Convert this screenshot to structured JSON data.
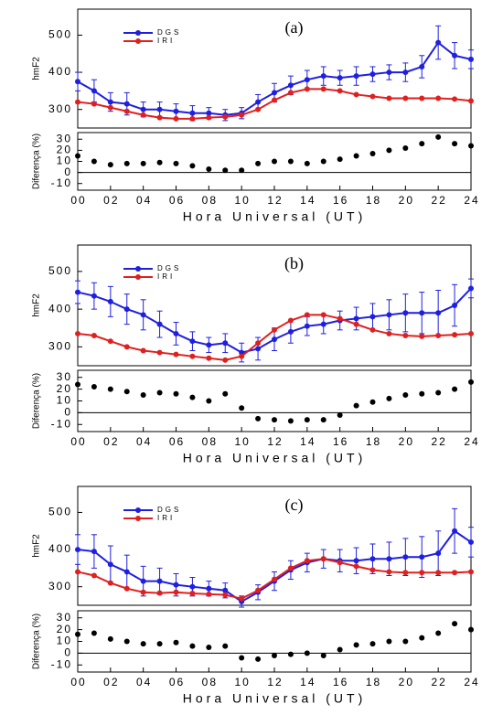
{
  "chart_data": [
    {
      "type": "line",
      "annotation": "(a)",
      "ylabel": "hmF2",
      "xlim": [
        0,
        24
      ],
      "ylim": [
        250,
        570
      ],
      "yticks": [
        300,
        400,
        500
      ],
      "x": [
        0,
        1,
        2,
        3,
        4,
        5,
        6,
        7,
        8,
        9,
        10,
        11,
        12,
        13,
        14,
        15,
        16,
        17,
        18,
        19,
        20,
        21,
        22,
        23,
        24
      ],
      "series": [
        {
          "name": "DGS",
          "color": "#1f1fe0",
          "values": [
            375,
            350,
            320,
            315,
            300,
            300,
            295,
            290,
            290,
            285,
            290,
            320,
            345,
            365,
            380,
            390,
            385,
            390,
            395,
            400,
            400,
            415,
            480,
            445,
            435
          ],
          "errors": [
            25,
            30,
            25,
            30,
            20,
            20,
            20,
            20,
            15,
            15,
            15,
            20,
            25,
            25,
            25,
            25,
            20,
            25,
            20,
            20,
            25,
            30,
            45,
            35,
            25
          ]
        },
        {
          "name": "IRI",
          "color": "#e0201f",
          "values": [
            320,
            315,
            305,
            295,
            285,
            278,
            275,
            275,
            278,
            280,
            285,
            300,
            325,
            345,
            355,
            355,
            350,
            340,
            335,
            330,
            330,
            330,
            330,
            328,
            323
          ]
        }
      ]
    },
    {
      "type": "scatter",
      "ylabel": "Diferença (%)",
      "xlabel": "Hora Universal (UT)",
      "xlim": [
        0,
        24
      ],
      "ylim": [
        -16,
        36
      ],
      "yticks": [
        -10,
        0,
        10,
        20,
        30
      ],
      "zero_line": true,
      "xticks": [
        {
          "value": 0,
          "label": "00"
        },
        {
          "value": 2,
          "label": "02"
        },
        {
          "value": 4,
          "label": "04"
        },
        {
          "value": 6,
          "label": "06"
        },
        {
          "value": 8,
          "label": "08"
        },
        10,
        12,
        14,
        16,
        18,
        20,
        22,
        24
      ],
      "x": [
        0,
        1,
        2,
        3,
        4,
        5,
        6,
        7,
        8,
        9,
        10,
        11,
        12,
        13,
        14,
        15,
        16,
        17,
        18,
        19,
        20,
        21,
        22,
        23,
        24
      ],
      "series": [
        {
          "color": "#000000",
          "values": [
            15,
            10,
            7,
            8,
            8,
            9,
            8,
            6,
            3,
            2,
            2,
            8,
            10,
            10,
            8,
            10,
            12,
            15,
            17,
            20,
            22,
            26,
            32,
            26,
            24
          ]
        }
      ]
    },
    {
      "type": "line",
      "annotation": "(b)",
      "ylabel": "hmF2",
      "xlim": [
        0,
        24
      ],
      "ylim": [
        250,
        570
      ],
      "yticks": [
        300,
        400,
        500
      ],
      "x": [
        0,
        1,
        2,
        3,
        4,
        5,
        6,
        7,
        8,
        9,
        10,
        11,
        12,
        13,
        14,
        15,
        16,
        17,
        18,
        19,
        20,
        21,
        22,
        23,
        24
      ],
      "series": [
        {
          "name": "DGS",
          "color": "#1f1fe0",
          "values": [
            445,
            435,
            420,
            400,
            385,
            360,
            335,
            315,
            305,
            310,
            285,
            295,
            320,
            340,
            355,
            360,
            370,
            375,
            380,
            385,
            390,
            390,
            390,
            410,
            455
          ],
          "errors": [
            30,
            35,
            40,
            40,
            40,
            35,
            30,
            25,
            20,
            25,
            25,
            30,
            30,
            30,
            25,
            25,
            25,
            30,
            35,
            40,
            50,
            55,
            60,
            55,
            25
          ]
        },
        {
          "name": "IRI",
          "color": "#e0201f",
          "values": [
            335,
            330,
            315,
            300,
            290,
            285,
            280,
            275,
            270,
            265,
            275,
            310,
            345,
            370,
            385,
            385,
            375,
            360,
            345,
            335,
            330,
            328,
            330,
            332,
            335
          ]
        }
      ]
    },
    {
      "type": "scatter",
      "ylabel": "Diferença (%)",
      "xlabel": "Hora Universal (UT)",
      "xlim": [
        0,
        24
      ],
      "ylim": [
        -16,
        36
      ],
      "yticks": [
        -10,
        0,
        10,
        20,
        30
      ],
      "zero_line": true,
      "xticks": [
        {
          "value": 0,
          "label": "00"
        },
        {
          "value": 2,
          "label": "02"
        },
        {
          "value": 4,
          "label": "04"
        },
        {
          "value": 6,
          "label": "06"
        },
        {
          "value": 8,
          "label": "08"
        },
        10,
        12,
        14,
        16,
        18,
        20,
        22,
        24
      ],
      "x": [
        0,
        1,
        2,
        3,
        4,
        5,
        6,
        7,
        8,
        9,
        10,
        11,
        12,
        13,
        14,
        15,
        16,
        17,
        18,
        19,
        20,
        21,
        22,
        23,
        24
      ],
      "series": [
        {
          "color": "#000000",
          "values": [
            24,
            22,
            20,
            18,
            15,
            17,
            16,
            13,
            10,
            16,
            4,
            -5,
            -6,
            -7,
            -6,
            -6,
            -2,
            6,
            9,
            12,
            15,
            16,
            17,
            20,
            26
          ]
        }
      ]
    },
    {
      "type": "line",
      "annotation": "(c)",
      "ylabel": "hmF2",
      "xlim": [
        0,
        24
      ],
      "ylim": [
        250,
        570
      ],
      "yticks": [
        300,
        400,
        500
      ],
      "x": [
        0,
        1,
        2,
        3,
        4,
        5,
        6,
        7,
        8,
        9,
        10,
        11,
        12,
        13,
        14,
        15,
        16,
        17,
        18,
        19,
        20,
        21,
        22,
        23,
        24
      ],
      "series": [
        {
          "name": "DGS",
          "color": "#1f1fe0",
          "values": [
            400,
            395,
            360,
            340,
            315,
            315,
            305,
            300,
            295,
            290,
            260,
            285,
            315,
            345,
            365,
            375,
            370,
            370,
            375,
            375,
            380,
            380,
            390,
            450,
            420
          ],
          "errors": [
            40,
            45,
            50,
            45,
            40,
            35,
            30,
            25,
            20,
            20,
            15,
            20,
            25,
            25,
            25,
            25,
            30,
            35,
            40,
            45,
            50,
            55,
            60,
            60,
            40
          ]
        },
        {
          "name": "IRI",
          "color": "#e0201f",
          "values": [
            340,
            330,
            310,
            295,
            285,
            283,
            285,
            282,
            280,
            278,
            268,
            290,
            320,
            350,
            370,
            375,
            365,
            355,
            345,
            340,
            338,
            338,
            338,
            338,
            340
          ]
        }
      ]
    },
    {
      "type": "scatter",
      "ylabel": "Diferença (%)",
      "xlabel": "Hora Universal (UT)",
      "xlim": [
        0,
        24
      ],
      "ylim": [
        -16,
        36
      ],
      "yticks": [
        -10,
        0,
        10,
        20,
        30
      ],
      "zero_line": true,
      "xticks": [
        {
          "value": 0,
          "label": "00"
        },
        {
          "value": 2,
          "label": "02"
        },
        {
          "value": 4,
          "label": "04"
        },
        {
          "value": 6,
          "label": "06"
        },
        {
          "value": 8,
          "label": "08"
        },
        10,
        12,
        14,
        16,
        18,
        20,
        22,
        24
      ],
      "x": [
        0,
        1,
        2,
        3,
        4,
        5,
        6,
        7,
        8,
        9,
        10,
        11,
        12,
        13,
        14,
        15,
        16,
        17,
        18,
        19,
        20,
        21,
        22,
        23,
        24
      ],
      "series": [
        {
          "color": "#000000",
          "values": [
            16,
            17,
            12,
            10,
            8,
            8,
            9,
            6,
            5,
            6,
            -4,
            -5,
            -2,
            -1,
            0,
            -2,
            3,
            7,
            8,
            10,
            10,
            13,
            17,
            25,
            20
          ]
        }
      ]
    }
  ]
}
